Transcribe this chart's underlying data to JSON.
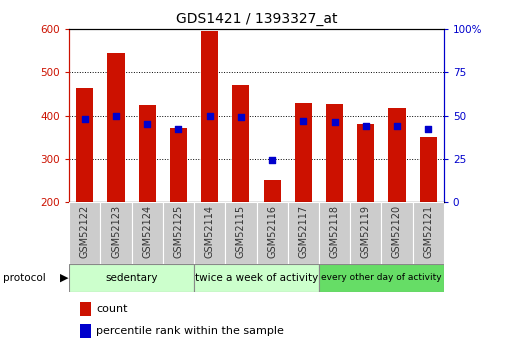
{
  "title": "GDS1421 / 1393327_at",
  "samples": [
    "GSM52122",
    "GSM52123",
    "GSM52124",
    "GSM52125",
    "GSM52114",
    "GSM52115",
    "GSM52116",
    "GSM52117",
    "GSM52118",
    "GSM52119",
    "GSM52120",
    "GSM52121"
  ],
  "counts": [
    463,
    545,
    425,
    372,
    595,
    470,
    250,
    430,
    428,
    380,
    418,
    350
  ],
  "percentile_ranks": [
    48,
    50,
    45,
    42,
    50,
    49,
    24,
    47,
    46,
    44,
    44,
    42
  ],
  "ylim_left": [
    200,
    600
  ],
  "ylim_right": [
    0,
    100
  ],
  "yticks_left": [
    200,
    300,
    400,
    500,
    600
  ],
  "yticks_right": [
    0,
    25,
    50,
    75,
    100
  ],
  "bar_color": "#cc1100",
  "dot_color": "#0000cc",
  "bar_bottom": 200,
  "groups": [
    {
      "label": "sedentary",
      "start": 0,
      "end": 4,
      "color": "#ccffcc"
    },
    {
      "label": "twice a week of activity",
      "start": 4,
      "end": 8,
      "color": "#ccffcc"
    },
    {
      "label": "every other day of activity",
      "start": 8,
      "end": 12,
      "color": "#66dd66"
    }
  ],
  "protocol_label": "protocol",
  "legend_count_label": "count",
  "legend_pct_label": "percentile rank within the sample",
  "left_axis_color": "#cc1100",
  "right_axis_color": "#0000cc",
  "xlabels_bg": "#cccccc",
  "proto_border_color": "#888888",
  "fig_bg": "#ffffff"
}
